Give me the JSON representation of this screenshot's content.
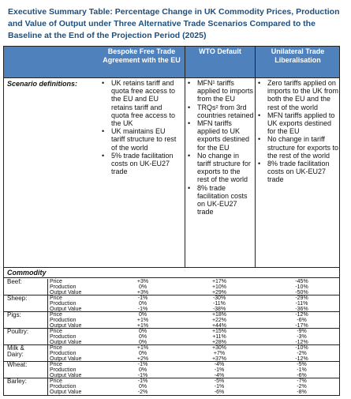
{
  "title": "Executive Summary Table: Percentage Change in UK Commodity Prices, Production and Value of Output under Three Alternative Trade Scenarios Compared to the Baseline at the End of the Projection Period (2025)",
  "headers": {
    "col1": "Bespoke Free Trade Agreement with the EU",
    "col2": "WTO Default",
    "col3": "Unilateral Trade Liberalisation"
  },
  "scenario_label": "Scenario definitions:",
  "definitions": {
    "col1": [
      "UK retains tariff and quota free access to the EU and EU retains tariff and quota free access to the UK",
      "UK maintains EU tariff structure to rest of the world",
      "5% trade facilitation costs on UK-EU27 trade"
    ],
    "col2": [
      "MFN¹ tariffs applied to imports from the EU",
      "TRQs² from 3rd countries retained",
      "MFN tariffs applied to UK exports destined for the EU",
      "No change in tariff structure for exports to the rest of the world",
      "8% trade facilitation costs on UK-EU27 trade"
    ],
    "col3": [
      "Zero tariffs applied on imports to the UK from both the EU and the rest of the world",
      "MFN tariffs applied to UK exports destined for the EU",
      "No change in tariff structure for exports to the rest of the world",
      "8% trade facilitation costs on UK-EU27 trade"
    ]
  },
  "commodity_label": "Commodity",
  "measure_labels": [
    "Price",
    "Production",
    "Output Value"
  ],
  "commodities": [
    {
      "name": "Beef:",
      "values": [
        [
          "+3%",
          "+17%",
          "-45%"
        ],
        [
          "0%",
          "+10%",
          "-10%"
        ],
        [
          "+3%",
          "+29%",
          "-50%"
        ]
      ]
    },
    {
      "name": "Sheep:",
      "values": [
        [
          "-1%",
          "-30%",
          "-29%"
        ],
        [
          "0%",
          "-11%",
          "-11%"
        ],
        [
          "-1%",
          "-38%",
          "-36%"
        ]
      ]
    },
    {
      "name": "Pigs:",
      "values": [
        [
          "0%",
          "+18%",
          "-12%"
        ],
        [
          "+1%",
          "+22%",
          "-6%"
        ],
        [
          "+1%",
          "+44%",
          "-17%"
        ]
      ]
    },
    {
      "name": "Poultry:",
      "values": [
        [
          "0%",
          "+15%",
          "-9%"
        ],
        [
          "0%",
          "+11%",
          "-3%"
        ],
        [
          "0%",
          "+28%",
          "-12%"
        ]
      ]
    },
    {
      "name": "Milk & Dairy:",
      "values": [
        [
          "+1%",
          "+30%",
          "-10%"
        ],
        [
          "0%",
          "+7%",
          "-2%"
        ],
        [
          "+2%",
          "+37%",
          "-12%"
        ]
      ]
    },
    {
      "name": "Wheat:",
      "values": [
        [
          "-1%",
          "-4%",
          "-5%"
        ],
        [
          "0%",
          "-1%",
          "-1%"
        ],
        [
          "-1%",
          "-4%",
          "-6%"
        ]
      ]
    },
    {
      "name": "Barley:",
      "values": [
        [
          "-1%",
          "-5%",
          "-7%"
        ],
        [
          "0%",
          "-1%",
          "-2%"
        ],
        [
          "-2%",
          "-6%",
          "-8%"
        ]
      ]
    }
  ]
}
